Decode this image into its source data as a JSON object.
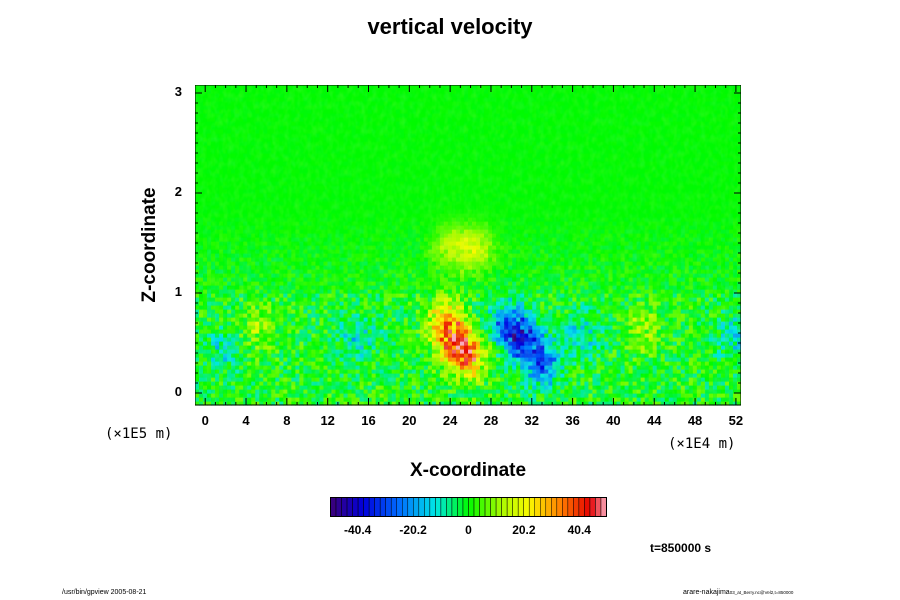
{
  "chart_data": {
    "type": "heatmap",
    "title": "vertical velocity",
    "xlabel": "X-coordinate",
    "ylabel": "Z-coordinate",
    "x_scale_label": "(×1E4 m)",
    "y_scale_label": "(×1E5 m)",
    "x_ticks": [
      "0",
      "4",
      "8",
      "12",
      "16",
      "20",
      "24",
      "28",
      "32",
      "36",
      "40",
      "44",
      "48",
      "52"
    ],
    "y_ticks": [
      "0",
      "1",
      "2",
      "3"
    ],
    "xlim": [
      -1,
      52.5
    ],
    "ylim": [
      -0.12,
      3.08
    ],
    "colorbar": {
      "ticks": [
        "-40.4",
        "-20.2",
        "0",
        "20.2",
        "40.4"
      ],
      "tick_values": [
        -40.4,
        -20.2,
        0,
        20.2,
        40.4
      ],
      "range": [
        -50.5,
        50.5
      ]
    },
    "time_label": "t=850000 s",
    "features": [
      {
        "x": 24.5,
        "z": 0.5,
        "value": 42
      },
      {
        "x": 23.5,
        "z": 0.75,
        "value": 28
      },
      {
        "x": 26,
        "z": 0.35,
        "value": 30
      },
      {
        "x": 31,
        "z": 0.55,
        "value": -35
      },
      {
        "x": 33,
        "z": 0.3,
        "value": -32
      },
      {
        "x": 29.5,
        "z": 0.7,
        "value": -25
      },
      {
        "x": 26.5,
        "z": 1.45,
        "value": 18
      },
      {
        "x": 24,
        "z": 1.45,
        "value": 15
      },
      {
        "x": 5,
        "z": 0.65,
        "value": 14
      },
      {
        "x": 43,
        "z": 0.65,
        "value": 14
      },
      {
        "x": 2,
        "z": 0.45,
        "value": -12
      },
      {
        "x": 15,
        "z": 0.55,
        "value": -14
      },
      {
        "x": 37,
        "z": 0.6,
        "value": -12
      },
      {
        "x": 52,
        "z": 0.55,
        "value": -14
      }
    ]
  },
  "footer": {
    "left": "/usr/bin/gpview 2005-08-21",
    "right_main": "arare-nakajima",
    "right_sub": "03_at_Berry.nc@Vel2,t=850000"
  }
}
